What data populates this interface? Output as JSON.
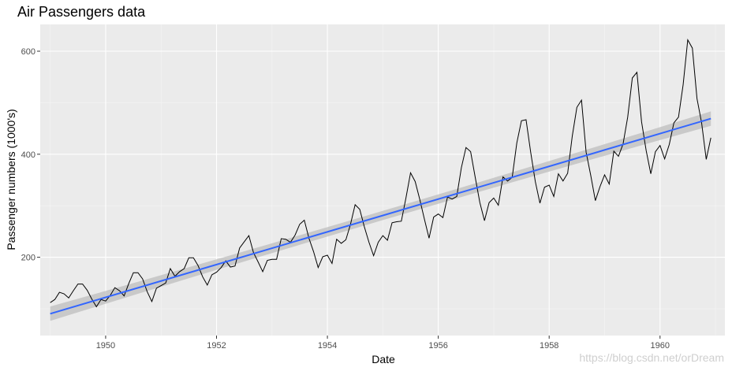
{
  "chart_data": {
    "type": "line",
    "title": "Air Passengers data",
    "xlabel": "Date",
    "ylabel": "Passenger numbers (1000's)",
    "xlim": [
      1948.82,
      1961.17
    ],
    "ylim": [
      48,
      652
    ],
    "x_ticks": [
      1950,
      1952,
      1954,
      1956,
      1958,
      1960
    ],
    "x_tick_labels": [
      "1950",
      "1952",
      "1954",
      "1956",
      "1958",
      "1960"
    ],
    "y_ticks": [
      200,
      400,
      600
    ],
    "y_tick_labels": [
      "200",
      "400",
      "600"
    ],
    "grid": true,
    "x_start": 1949,
    "x_step": 0.083333,
    "series": [
      {
        "kind": "observed",
        "color": "#000000",
        "values": [
          112,
          118,
          132,
          129,
          121,
          135,
          148,
          148,
          136,
          119,
          104,
          118,
          115,
          126,
          141,
          135,
          125,
          149,
          170,
          170,
          158,
          133,
          114,
          140,
          145,
          150,
          178,
          163,
          172,
          178,
          199,
          199,
          184,
          162,
          146,
          166,
          171,
          180,
          193,
          181,
          183,
          218,
          230,
          242,
          209,
          191,
          172,
          194,
          196,
          196,
          236,
          235,
          229,
          243,
          264,
          272,
          237,
          211,
          180,
          201,
          204,
          188,
          235,
          227,
          234,
          264,
          302,
          293,
          259,
          229,
          203,
          229,
          242,
          233,
          267,
          269,
          270,
          315,
          364,
          347,
          312,
          274,
          237,
          278,
          284,
          277,
          317,
          313,
          318,
          374,
          413,
          405,
          355,
          306,
          271,
          306,
          315,
          301,
          356,
          348,
          355,
          422,
          465,
          467,
          404,
          347,
          305,
          336,
          340,
          318,
          362,
          348,
          363,
          435,
          491,
          505,
          404,
          359,
          310,
          337,
          360,
          342,
          406,
          396,
          420,
          472,
          548,
          559,
          463,
          407,
          362,
          405,
          417,
          391,
          419,
          461,
          472,
          535,
          622,
          606,
          508,
          461,
          390,
          432
        ]
      },
      {
        "kind": "linear trend",
        "color": "#3366ff",
        "x": [
          1949.0,
          1960.917
        ],
        "values": [
          90.4,
          469.2
        ],
        "band_half_width": [
          14,
          9,
          14
        ]
      }
    ],
    "watermark": "https://blog.csdn.net/orDream"
  },
  "colors": {
    "panel_background": "#ebebeb",
    "grid_major": "#ffffff",
    "trend_line": "#3366ff",
    "confidence_band": "#bebebe"
  }
}
